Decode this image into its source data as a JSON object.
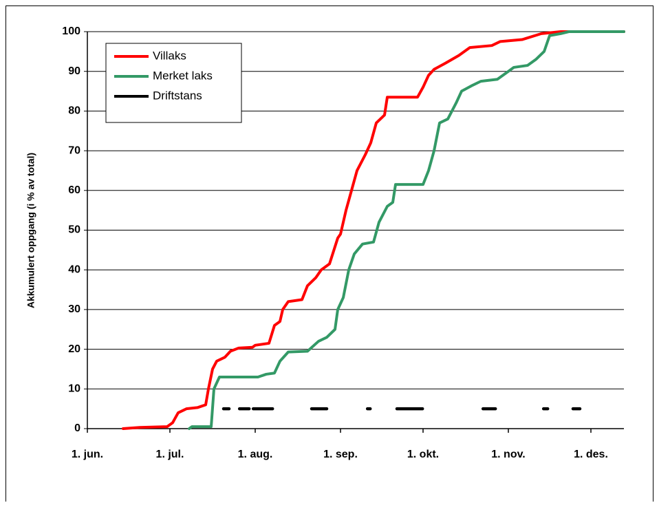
{
  "chart_data": {
    "type": "line",
    "y_label": "Akkumulert oppgang  (i % av total)",
    "xlim": [
      0,
      195
    ],
    "xticks": [
      {
        "value": 0,
        "label": "1. jun."
      },
      {
        "value": 30,
        "label": "1. jul."
      },
      {
        "value": 61,
        "label": "1. aug."
      },
      {
        "value": 92,
        "label": "1. sep."
      },
      {
        "value": 122,
        "label": "1. okt."
      },
      {
        "value": 153,
        "label": "1. nov."
      },
      {
        "value": 183,
        "label": "1. des."
      }
    ],
    "ylim": [
      0,
      100
    ],
    "yticks": [
      0,
      10,
      20,
      30,
      40,
      50,
      60,
      70,
      80,
      90,
      100
    ],
    "grid": true,
    "legend": "upper left",
    "series": [
      {
        "name": "Villaks",
        "color": "#ff0000",
        "x": [
          13,
          19,
          29,
          31,
          33,
          36,
          40,
          43,
          44,
          45.5,
          47,
          50,
          52,
          55,
          60,
          61,
          66,
          68,
          70,
          71,
          73,
          78,
          80,
          83,
          85,
          88,
          91,
          92,
          94,
          96,
          98,
          101,
          103,
          105,
          108,
          109,
          120,
          122,
          124,
          126,
          130,
          135,
          139,
          147,
          150,
          158,
          165,
          172,
          195
        ],
        "values": [
          0,
          0.3,
          0.5,
          1.5,
          4,
          5,
          5.3,
          6,
          10,
          15,
          17,
          18,
          19.5,
          20.3,
          20.5,
          21,
          21.5,
          26,
          27,
          30,
          32,
          32.5,
          36,
          38,
          40,
          41.5,
          48,
          49,
          55,
          60,
          65,
          69,
          72,
          77,
          79,
          83.5,
          83.5,
          86,
          89,
          90.5,
          92,
          94,
          96,
          96.5,
          97.5,
          98,
          99.5,
          100,
          100
        ]
      },
      {
        "name": "Merket laks",
        "color": "#339966",
        "x": [
          37,
          38,
          45,
          46,
          48,
          62,
          65,
          68,
          70,
          73,
          80,
          84,
          87,
          90,
          91,
          93,
          95,
          97,
          100,
          104,
          106,
          109,
          111,
          112,
          122,
          124,
          126,
          128,
          131,
          134,
          136,
          140,
          143,
          149,
          153,
          155,
          160,
          163,
          166,
          168,
          172,
          175,
          195
        ],
        "values": [
          0,
          0.5,
          0.5,
          10,
          13,
          13,
          13.7,
          14,
          17,
          19.3,
          19.5,
          22,
          23,
          25,
          30,
          33,
          40,
          44,
          46.5,
          47,
          52,
          56,
          57,
          61.5,
          61.5,
          65,
          70,
          77,
          78,
          82,
          85,
          86.5,
          87.5,
          88,
          90,
          91,
          91.5,
          93,
          95,
          99,
          99.5,
          100,
          100
        ]
      },
      {
        "name": "Driftstans",
        "color": "#000000",
        "x": [
          49.5,
          51.5,
          52,
          55.3,
          58.8,
          59,
          60.3,
          67.3,
          70,
          81.5,
          87,
          90,
          101.8,
          102.8,
          105,
          112.5,
          121.8,
          130,
          143.8,
          148.3,
          155,
          165.8,
          167.3,
          170,
          176.5,
          179
        ],
        "values": [
          5,
          5,
          null,
          5,
          5,
          null,
          5,
          5,
          null,
          5,
          5,
          null,
          5,
          5,
          null,
          5,
          5,
          null,
          5,
          5,
          null,
          5,
          5,
          null,
          5,
          5
        ]
      }
    ]
  }
}
